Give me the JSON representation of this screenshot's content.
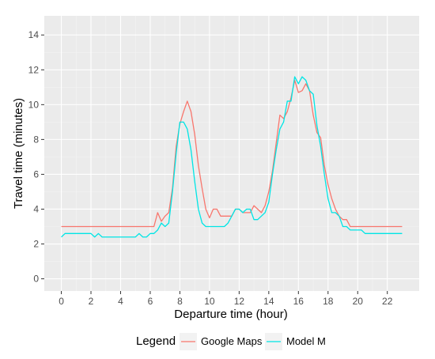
{
  "chart_data": {
    "type": "line",
    "xlabel": "Departure time (hour)",
    "ylabel": "Travel time (minutes)",
    "xlim": [
      -1.15,
      24.15
    ],
    "ylim": [
      -0.7,
      15.1
    ],
    "x_ticks": [
      0,
      2,
      4,
      6,
      8,
      10,
      12,
      14,
      16,
      18,
      20,
      22
    ],
    "y_ticks": [
      0,
      2,
      4,
      6,
      8,
      10,
      12,
      14
    ],
    "grid": true,
    "legend": {
      "title": "Legend",
      "position": "bottom"
    },
    "colors": {
      "panel": "#ebebeb",
      "grid_major": "#ffffff",
      "grid_minor": "#f4f4f4"
    },
    "series": [
      {
        "name": "Google Maps",
        "color": "#f8766d",
        "x": [
          0,
          0.25,
          0.5,
          0.75,
          1,
          1.25,
          1.5,
          1.75,
          2,
          2.25,
          2.5,
          2.75,
          3,
          3.25,
          3.5,
          3.75,
          4,
          4.25,
          4.5,
          4.75,
          5,
          5.25,
          5.5,
          5.75,
          6,
          6.25,
          6.5,
          6.75,
          7,
          7.25,
          7.5,
          7.75,
          8,
          8.25,
          8.5,
          8.75,
          9,
          9.25,
          9.5,
          9.75,
          10,
          10.25,
          10.5,
          10.75,
          11,
          11.25,
          11.5,
          11.75,
          12,
          12.25,
          12.5,
          12.75,
          13,
          13.25,
          13.5,
          13.75,
          14,
          14.25,
          14.5,
          14.75,
          15,
          15.25,
          15.5,
          15.75,
          16,
          16.25,
          16.5,
          16.75,
          17,
          17.25,
          17.5,
          17.75,
          18,
          18.25,
          18.5,
          18.75,
          19,
          19.25,
          19.5,
          19.75,
          20,
          20.25,
          20.5,
          20.75,
          21,
          21.25,
          21.5,
          21.75,
          22,
          22.25,
          22.5,
          22.75,
          23
        ],
        "y": [
          3,
          3,
          3,
          3,
          3,
          3,
          3,
          3,
          3,
          3,
          3,
          3,
          3,
          3,
          3,
          3,
          3,
          3,
          3,
          3,
          3,
          3,
          3,
          3,
          3,
          3,
          3.8,
          3.3,
          3.6,
          3.8,
          5.2,
          7.6,
          8.9,
          9.6,
          10.2,
          9.6,
          8.3,
          6.5,
          5.2,
          4,
          3.5,
          4,
          4,
          3.6,
          3.6,
          3.6,
          3.6,
          4,
          4,
          3.8,
          3.8,
          3.8,
          4.2,
          4,
          3.8,
          4.2,
          5,
          6.2,
          7.8,
          9.4,
          9.2,
          9.6,
          10.4,
          11.4,
          10.7,
          10.8,
          11.2,
          10.8,
          9.4,
          8.4,
          8.1,
          6.5,
          5.4,
          4.6,
          4,
          3.6,
          3.4,
          3.4,
          3,
          3,
          3,
          3,
          3,
          3,
          3,
          3,
          3,
          3,
          3,
          3,
          3,
          3,
          3
        ]
      },
      {
        "name": "Model M",
        "color": "#00e5e5",
        "x": [
          0,
          0.25,
          0.5,
          0.75,
          1,
          1.25,
          1.5,
          1.75,
          2,
          2.25,
          2.5,
          2.75,
          3,
          3.25,
          3.5,
          3.75,
          4,
          4.25,
          4.5,
          4.75,
          5,
          5.25,
          5.5,
          5.75,
          6,
          6.25,
          6.5,
          6.75,
          7,
          7.25,
          7.5,
          7.75,
          8,
          8.25,
          8.5,
          8.75,
          9,
          9.25,
          9.5,
          9.75,
          10,
          10.25,
          10.5,
          10.75,
          11,
          11.25,
          11.5,
          11.75,
          12,
          12.25,
          12.5,
          12.75,
          13,
          13.25,
          13.5,
          13.75,
          14,
          14.25,
          14.5,
          14.75,
          15,
          15.25,
          15.5,
          15.75,
          16,
          16.25,
          16.5,
          16.75,
          17,
          17.25,
          17.5,
          17.75,
          18,
          18.25,
          18.5,
          18.75,
          19,
          19.25,
          19.5,
          19.75,
          20,
          20.25,
          20.5,
          20.75,
          21,
          21.25,
          21.5,
          21.75,
          22,
          22.25,
          22.5,
          22.75,
          23
        ],
        "y": [
          2.4,
          2.6,
          2.6,
          2.6,
          2.6,
          2.6,
          2.6,
          2.6,
          2.6,
          2.4,
          2.6,
          2.4,
          2.4,
          2.4,
          2.4,
          2.4,
          2.4,
          2.4,
          2.4,
          2.4,
          2.4,
          2.6,
          2.4,
          2.4,
          2.6,
          2.6,
          2.8,
          3.2,
          3,
          3.2,
          5,
          7.2,
          9,
          9,
          8.6,
          7.4,
          5.6,
          4,
          3.2,
          3,
          3,
          3,
          3,
          3,
          3,
          3.2,
          3.6,
          4,
          4,
          3.8,
          4,
          4,
          3.4,
          3.4,
          3.6,
          3.8,
          4.4,
          6,
          7.4,
          8.6,
          9,
          10.2,
          10.2,
          11.6,
          11.2,
          11.6,
          11.4,
          10.8,
          10.6,
          8.8,
          7.6,
          6,
          4.6,
          3.8,
          3.8,
          3.6,
          3,
          3,
          2.8,
          2.8,
          2.8,
          2.8,
          2.6,
          2.6,
          2.6,
          2.6,
          2.6,
          2.6,
          2.6,
          2.6,
          2.6,
          2.6,
          2.6
        ]
      }
    ]
  }
}
